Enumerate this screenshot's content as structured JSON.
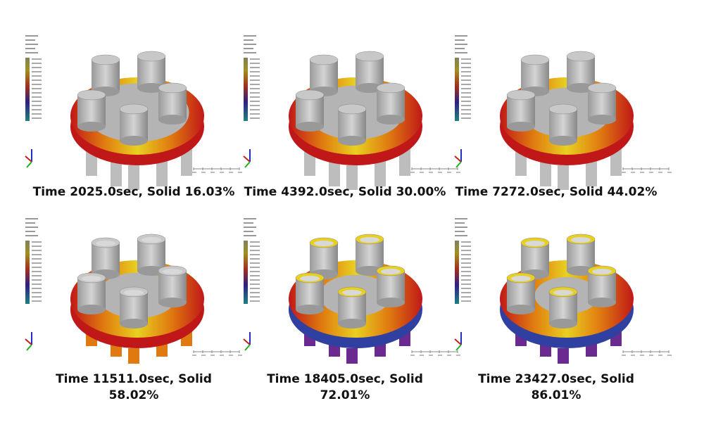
{
  "panels": [
    {
      "caption": "Time 2025.0sec, Solid 16.03%",
      "solid_fraction": 16.03,
      "time_sec": 2025.0
    },
    {
      "caption": "Time 4392.0sec, Solid 30.00%",
      "solid_fraction": 30.0,
      "time_sec": 4392.0
    },
    {
      "caption": "Time 7272.0sec, Solid 44.02%",
      "solid_fraction": 44.02,
      "time_sec": 7272.0
    },
    {
      "caption_line1": "Time 11511.0sec, Solid",
      "caption_line2": "58.02%",
      "solid_fraction": 58.02,
      "time_sec": 11511.0
    },
    {
      "caption_line1": "Time 18405.0sec, Solid",
      "caption_line2": "72.01%",
      "solid_fraction": 72.01,
      "time_sec": 18405.0
    },
    {
      "caption_line1": "Time 23427.0sec, Solid",
      "caption_line2": "86.01%",
      "solid_fraction": 86.01,
      "time_sec": 23427.0
    }
  ],
  "colors": {
    "solid_gray": "#b4b4b4",
    "hot_yellow": "#e8d020",
    "orange": "#e07a10",
    "red": "#c01818",
    "blue": "#2030a0",
    "cyan": "#30b0d0"
  }
}
